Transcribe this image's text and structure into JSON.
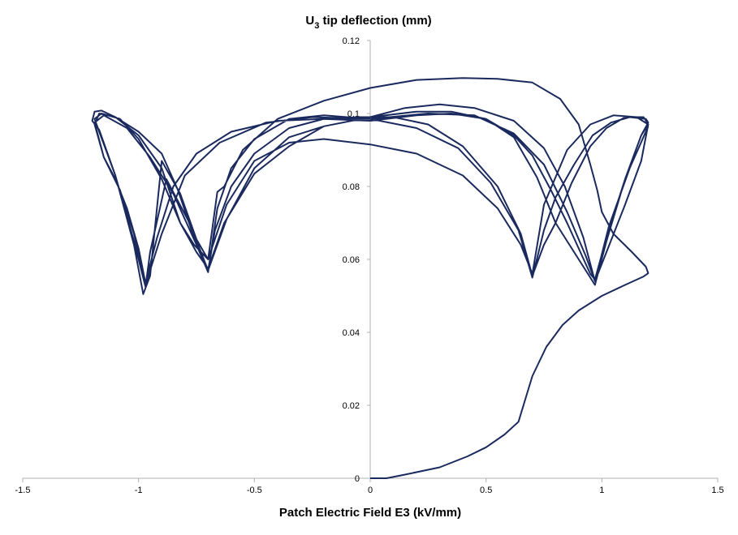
{
  "chart_data": {
    "type": "line",
    "title": {
      "main": "U",
      "sub": "3",
      "rest": " tip deflection (mm)"
    },
    "xlabel": "Patch Electric Field E3 (kV/mm)",
    "ylabel": "",
    "xlim": [
      -1.5,
      1.5
    ],
    "ylim": [
      0,
      0.12
    ],
    "x_ticks": [
      "-1.5",
      "-1",
      "-0.5",
      "0",
      "0.5",
      "1",
      "1.5"
    ],
    "y_ticks": [
      "0",
      "0.02",
      "0.04",
      "0.06",
      "0.08",
      "0.1",
      "0.12"
    ],
    "grid": false,
    "legend": "none",
    "line_color": "#1b2a5e",
    "series": [
      {
        "values": [
          [
            0,
            0
          ],
          [
            0.07,
            0
          ],
          [
            0.15,
            0.001
          ],
          [
            0.3,
            0.003
          ],
          [
            0.42,
            0.006
          ],
          [
            0.5,
            0.0085
          ],
          [
            0.58,
            0.012
          ],
          [
            0.64,
            0.0155
          ],
          [
            0.7,
            0.028
          ],
          [
            0.76,
            0.036
          ],
          [
            0.83,
            0.042
          ],
          [
            0.9,
            0.046
          ],
          [
            1.0,
            0.05
          ],
          [
            1.1,
            0.053
          ],
          [
            1.18,
            0.0553
          ],
          [
            1.2,
            0.0562
          ],
          [
            1.19,
            0.058
          ],
          [
            1.13,
            0.062
          ],
          [
            1.05,
            0.067
          ],
          [
            1.0,
            0.073
          ],
          [
            0.98,
            0.079
          ],
          [
            0.95,
            0.086
          ],
          [
            0.9,
            0.097
          ],
          [
            0.82,
            0.104
          ],
          [
            0.7,
            0.1085
          ],
          [
            0.55,
            0.1095
          ],
          [
            0.4,
            0.1097
          ],
          [
            0.2,
            0.1092
          ],
          [
            0,
            0.107
          ],
          [
            -0.2,
            0.1035
          ],
          [
            -0.4,
            0.0985
          ],
          [
            -0.55,
            0.09
          ],
          [
            -0.63,
            0.08
          ],
          [
            -0.66,
            0.0785
          ],
          [
            -0.7,
            0.06
          ],
          [
            -0.75,
            0.0655
          ],
          [
            -0.82,
            0.078
          ],
          [
            -0.9,
            0.087
          ],
          [
            -0.95,
            0.0555
          ],
          [
            -0.98,
            0.0505
          ],
          [
            -1.02,
            0.064
          ],
          [
            -1.1,
            0.083
          ],
          [
            -1.17,
            0.0955
          ],
          [
            -1.2,
            0.098
          ],
          [
            -1.19,
            0.1005
          ],
          [
            -1.16,
            0.1008
          ],
          [
            -1.1,
            0.099
          ],
          [
            -1.0,
            0.094
          ],
          [
            -0.9,
            0.085
          ],
          [
            -0.82,
            0.07
          ],
          [
            -0.76,
            0.064
          ],
          [
            -0.7,
            0.06
          ],
          [
            -0.62,
            0.075
          ],
          [
            -0.5,
            0.087
          ],
          [
            -0.35,
            0.092
          ],
          [
            -0.2,
            0.093
          ],
          [
            0,
            0.0915
          ],
          [
            0.2,
            0.089
          ],
          [
            0.4,
            0.083
          ],
          [
            0.55,
            0.074
          ],
          [
            0.65,
            0.064
          ],
          [
            0.7,
            0.056
          ],
          [
            0.75,
            0.075
          ],
          [
            0.85,
            0.09
          ],
          [
            0.95,
            0.097
          ],
          [
            1.05,
            0.0995
          ],
          [
            1.15,
            0.099
          ],
          [
            1.2,
            0.097
          ],
          [
            1.17,
            0.087
          ],
          [
            1.1,
            0.075
          ],
          [
            1.02,
            0.062
          ],
          [
            0.97,
            0.054
          ],
          [
            0.92,
            0.066
          ],
          [
            0.84,
            0.08
          ],
          [
            0.75,
            0.0905
          ],
          [
            0.62,
            0.098
          ],
          [
            0.45,
            0.1015
          ],
          [
            0.3,
            0.1025
          ],
          [
            0.15,
            0.1015
          ],
          [
            0,
            0.099
          ],
          [
            -0.2,
            0.0965
          ],
          [
            -0.35,
            0.0935
          ],
          [
            -0.5,
            0.085
          ],
          [
            -0.62,
            0.071
          ],
          [
            -0.7,
            0.057
          ],
          [
            -0.78,
            0.07
          ],
          [
            -0.88,
            0.082
          ],
          [
            -0.95,
            0.062
          ],
          [
            -0.97,
            0.0525
          ],
          [
            -1.02,
            0.065
          ],
          [
            -1.1,
            0.083
          ],
          [
            -1.17,
            0.095
          ],
          [
            -1.19,
            0.0985
          ],
          [
            -1.16,
            0.1
          ],
          [
            -1.08,
            0.0985
          ],
          [
            -1.0,
            0.093
          ],
          [
            -0.9,
            0.082
          ],
          [
            -0.82,
            0.07
          ],
          [
            -0.75,
            0.062
          ],
          [
            -0.7,
            0.0575
          ],
          [
            -0.63,
            0.07
          ],
          [
            -0.5,
            0.0835
          ],
          [
            -0.35,
            0.091
          ],
          [
            -0.2,
            0.0965
          ],
          [
            0,
            0.099
          ],
          [
            0.2,
            0.1005
          ],
          [
            0.35,
            0.1005
          ],
          [
            0.5,
            0.0985
          ],
          [
            0.62,
            0.0935
          ],
          [
            0.72,
            0.0825
          ],
          [
            0.8,
            0.07
          ],
          [
            0.86,
            0.064
          ],
          [
            0.93,
            0.057
          ],
          [
            0.97,
            0.053
          ],
          [
            1.02,
            0.065
          ],
          [
            1.1,
            0.082
          ],
          [
            1.17,
            0.094
          ],
          [
            1.2,
            0.097
          ],
          [
            1.18,
            0.099
          ],
          [
            1.1,
            0.099
          ],
          [
            1.02,
            0.096
          ],
          [
            0.95,
            0.091
          ],
          [
            0.87,
            0.081
          ],
          [
            0.8,
            0.07
          ],
          [
            0.75,
            0.064
          ],
          [
            0.7,
            0.0555
          ],
          [
            0.65,
            0.067
          ],
          [
            0.55,
            0.08
          ],
          [
            0.4,
            0.091
          ],
          [
            0.25,
            0.097
          ],
          [
            0.1,
            0.099
          ],
          [
            -0.05,
            0.099
          ],
          [
            -0.2,
            0.0985
          ],
          [
            -0.35,
            0.096
          ],
          [
            -0.5,
            0.089
          ],
          [
            -0.6,
            0.08
          ],
          [
            -0.67,
            0.068
          ],
          [
            -0.7,
            0.057
          ],
          [
            -0.75,
            0.064
          ],
          [
            -0.83,
            0.079
          ],
          [
            -0.9,
            0.089
          ],
          [
            -1.0,
            0.095
          ],
          [
            -1.1,
            0.099
          ],
          [
            -1.17,
            0.1
          ],
          [
            -1.19,
            0.097
          ],
          [
            -1.15,
            0.088
          ],
          [
            -1.1,
            0.082
          ],
          [
            -1.05,
            0.074
          ],
          [
            -1.0,
            0.063
          ],
          [
            -0.97,
            0.0535
          ],
          [
            -0.92,
            0.066
          ],
          [
            -0.85,
            0.08
          ],
          [
            -0.75,
            0.089
          ],
          [
            -0.6,
            0.095
          ],
          [
            -0.4,
            0.098
          ],
          [
            -0.2,
            0.0985
          ],
          [
            0,
            0.098
          ],
          [
            0.2,
            0.0995
          ],
          [
            0.35,
            0.1
          ],
          [
            0.5,
            0.0985
          ],
          [
            0.62,
            0.094
          ],
          [
            0.7,
            0.0885
          ],
          [
            0.78,
            0.079
          ],
          [
            0.85,
            0.07
          ],
          [
            0.9,
            0.063
          ],
          [
            0.95,
            0.056
          ],
          [
            0.97,
            0.0545
          ],
          [
            1.02,
            0.066
          ],
          [
            1.1,
            0.082
          ],
          [
            1.17,
            0.094
          ],
          [
            1.2,
            0.0975
          ],
          [
            1.19,
            0.0985
          ],
          [
            1.12,
            0.099
          ],
          [
            1.04,
            0.0975
          ],
          [
            0.96,
            0.094
          ],
          [
            0.88,
            0.086
          ],
          [
            0.8,
            0.077
          ],
          [
            0.75,
            0.068
          ],
          [
            0.7,
            0.055
          ],
          [
            0.64,
            0.068
          ],
          [
            0.52,
            0.081
          ],
          [
            0.38,
            0.0905
          ],
          [
            0.2,
            0.096
          ],
          [
            0,
            0.0985
          ],
          [
            -0.2,
            0.0995
          ],
          [
            -0.35,
            0.0985
          ],
          [
            -0.5,
            0.093
          ],
          [
            -0.6,
            0.085
          ],
          [
            -0.66,
            0.074
          ],
          [
            -0.7,
            0.0565
          ],
          [
            -0.75,
            0.064
          ],
          [
            -0.85,
            0.078
          ],
          [
            -0.95,
            0.088
          ],
          [
            -1.05,
            0.096
          ],
          [
            -1.15,
            0.0995
          ],
          [
            -1.19,
            0.0975
          ],
          [
            -1.15,
            0.088
          ],
          [
            -1.08,
            0.079
          ],
          [
            -1.02,
            0.067
          ],
          [
            -0.97,
            0.053
          ],
          [
            -0.9,
            0.067
          ],
          [
            -0.8,
            0.083
          ],
          [
            -0.65,
            0.092
          ],
          [
            -0.45,
            0.0975
          ],
          [
            -0.25,
            0.099
          ],
          [
            0,
            0.0985
          ],
          [
            0.25,
            0.1
          ],
          [
            0.45,
            0.0995
          ],
          [
            0.62,
            0.0945
          ],
          [
            0.75,
            0.086
          ],
          [
            0.85,
            0.073
          ],
          [
            0.93,
            0.061
          ],
          [
            0.97,
            0.054
          ],
          [
            1.03,
            0.069
          ],
          [
            1.12,
            0.085
          ],
          [
            1.2,
            0.0965
          ]
        ]
      }
    ]
  }
}
